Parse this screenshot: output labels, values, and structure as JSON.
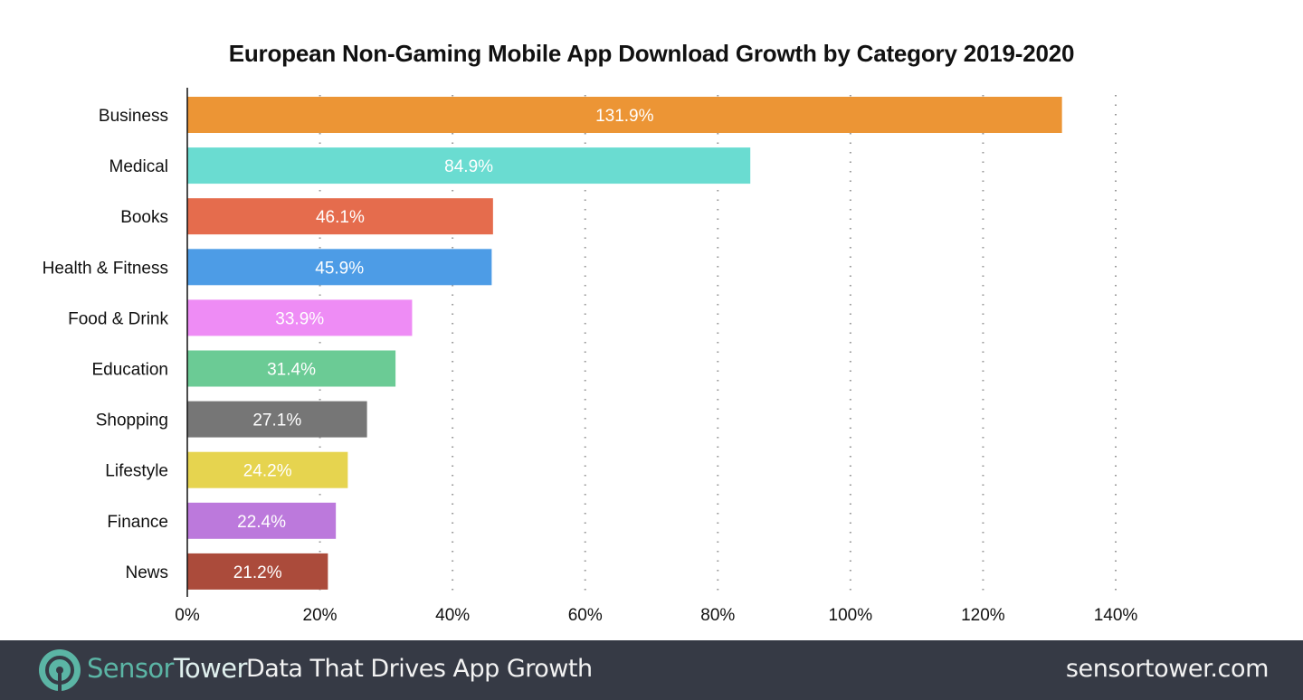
{
  "chart_data": {
    "type": "bar",
    "orientation": "horizontal",
    "title": "European Non-Gaming Mobile App Download Growth by Category 2019-2020",
    "xlabel": "",
    "ylabel": "",
    "categories": [
      "Business",
      "Medical",
      "Books",
      "Health & Fitness",
      "Food & Drink",
      "Education",
      "Shopping",
      "Lifestyle",
      "Finance",
      "News"
    ],
    "values": [
      131.9,
      84.9,
      46.1,
      45.9,
      33.9,
      31.4,
      27.1,
      24.2,
      22.4,
      21.2
    ],
    "data_labels": [
      "131.9%",
      "84.9%",
      "46.1%",
      "45.9%",
      "33.9%",
      "31.4%",
      "27.1%",
      "24.2%",
      "22.4%",
      "21.2%"
    ],
    "colors": [
      "#ec9535",
      "#6adcd1",
      "#e56c4d",
      "#4d9ce6",
      "#ee8cf5",
      "#6bcb95",
      "#767676",
      "#e6d44f",
      "#bc79dc",
      "#ab4b3b"
    ],
    "xlim": [
      0,
      140
    ],
    "xticks": [
      0,
      20,
      40,
      60,
      80,
      100,
      120,
      140
    ],
    "xtick_labels": [
      "0%",
      "20%",
      "40%",
      "60%",
      "80%",
      "100%",
      "120%",
      "140%"
    ],
    "grid": "vertical-dotted",
    "legend": "none"
  },
  "footer": {
    "brand_part1": "Sensor",
    "brand_part2": "Tower",
    "tagline": "Data That Drives App Growth",
    "website": "sensortower.com",
    "brand_color": "#5bb5a5",
    "background": "#363a45"
  }
}
